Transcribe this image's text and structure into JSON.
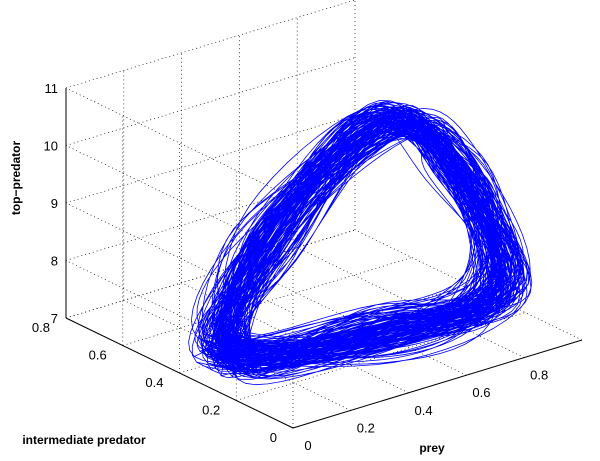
{
  "chart_data": {
    "type": "line",
    "view": "3d",
    "grid": true,
    "axes": {
      "x": {
        "label": "prey",
        "range": [
          0,
          1
        ],
        "ticks": [
          0,
          0.2,
          0.4,
          0.6,
          0.8
        ],
        "tick_labels": [
          "0",
          "0.2",
          "0.4",
          "0.6",
          "0.8"
        ]
      },
      "y": {
        "label": "intermediate predator",
        "range": [
          0,
          0.8
        ],
        "ticks": [
          0,
          0.2,
          0.4,
          0.6,
          0.8
        ],
        "tick_labels": [
          "0",
          "0.2",
          "0.4",
          "0.6",
          "0.8"
        ]
      },
      "z": {
        "label": "top−predator",
        "range": [
          7,
          11
        ],
        "ticks": [
          7,
          8,
          9,
          10,
          11
        ],
        "tick_labels": [
          "7",
          "8",
          "9",
          "10",
          "11"
        ]
      }
    },
    "series": [
      {
        "color": "#0000ff",
        "description_points": [
          {
            "x": 0.12,
            "y": 0.35,
            "z": 7.3
          },
          {
            "x": 0.45,
            "y": 0.55,
            "z": 8.2
          },
          {
            "x": 0.8,
            "y": 0.5,
            "z": 9.9
          },
          {
            "x": 0.92,
            "y": 0.35,
            "z": 9.2
          },
          {
            "x": 0.9,
            "y": 0.2,
            "z": 7.6
          },
          {
            "x": 0.55,
            "y": 0.25,
            "z": 7.2
          },
          {
            "x": 0.12,
            "y": 0.35,
            "z": 7.3
          }
        ]
      }
    ]
  }
}
